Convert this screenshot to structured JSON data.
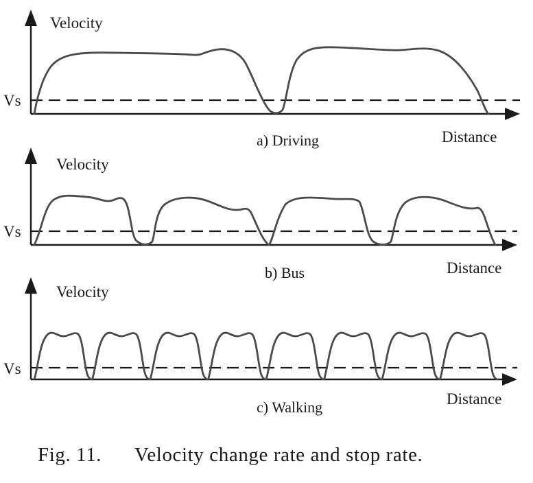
{
  "figure": {
    "caption_number": "Fig. 11.",
    "caption_text": "Velocity change rate and stop rate."
  },
  "panels": [
    {
      "id": "driving",
      "subtitle": "a) Driving",
      "y_label": "Velocity",
      "x_label": "Distance",
      "threshold_label": "Vs"
    },
    {
      "id": "bus",
      "subtitle": "b) Bus",
      "y_label": "Velocity",
      "x_label": "Distance",
      "threshold_label": "Vs"
    },
    {
      "id": "walking",
      "subtitle": "c) Walking",
      "y_label": "Velocity",
      "x_label": "Distance",
      "threshold_label": "Vs"
    }
  ]
}
